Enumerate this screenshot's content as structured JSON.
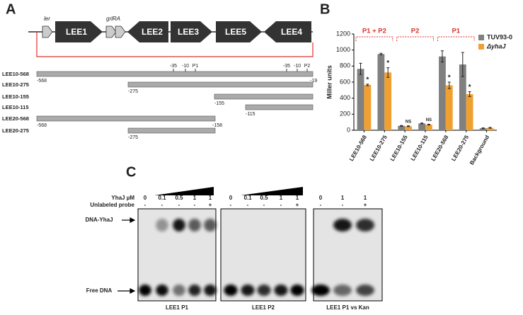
{
  "panel_labels": [
    "A",
    "B",
    "C"
  ],
  "panel_a": {
    "small_genes": [
      "ler",
      "grlRA"
    ],
    "operons": [
      "LEE1",
      "LEE2",
      "LEE3",
      "LEE5",
      "LEE4"
    ],
    "promoter_marks": [
      "-35",
      "-10",
      "P1",
      "-35",
      "-10",
      "P2"
    ],
    "constructs": [
      {
        "name": "LEE10-568",
        "labels": [
          "-568",
          "-19"
        ]
      },
      {
        "name": "LEE10-275",
        "labels": [
          "-275"
        ]
      },
      {
        "name": "LEE10-155",
        "labels": [
          "-155"
        ]
      },
      {
        "name": "LEE10-115",
        "labels": [
          "-115"
        ]
      },
      {
        "name": "LEE20-568",
        "labels": [
          "-568",
          "-158"
        ]
      },
      {
        "name": "LEE20-275",
        "labels": [
          "-275"
        ]
      }
    ]
  },
  "chart_data": {
    "type": "bar",
    "ylabel": "Miller units",
    "categories": [
      "LEE10-568",
      "LEE10-275",
      "LEE10-155",
      "LEE10-115",
      "LEE20-568",
      "LEE20-275",
      "Background"
    ],
    "series": [
      {
        "name": "TUV93-0",
        "color": "#808080",
        "values": [
          765,
          950,
          55,
          85,
          920,
          820,
          25
        ],
        "errors": [
          70,
          10,
          5,
          5,
          70,
          150,
          5
        ]
      },
      {
        "name": "ΔyhaJ",
        "color": "#f0a030",
        "values": [
          565,
          720,
          50,
          70,
          560,
          450,
          30
        ],
        "errors": [
          10,
          60,
          5,
          5,
          40,
          30,
          5
        ]
      }
    ],
    "significance": [
      "*",
      "*",
      "NS",
      "NS",
      "*",
      "*",
      null
    ],
    "groups": [
      "P1 + P2",
      "P2",
      "P1"
    ],
    "ylim": [
      0,
      1200
    ],
    "yticks": [
      0,
      200,
      400,
      600,
      800,
      1000,
      1200
    ],
    "legend": "upper right"
  },
  "panel_c": {
    "row_labels": [
      "YhaJ µM",
      "Unlabeled probe"
    ],
    "band_labels": [
      "DNA-YhaJ",
      "Free DNA"
    ],
    "gels": [
      {
        "caption": "LEE1 P1",
        "conc": [
          "0",
          "0.1",
          "0.5",
          "1",
          "1"
        ],
        "probe": [
          "-",
          "-",
          "-",
          "-",
          "+"
        ]
      },
      {
        "caption": "LEE1 P2",
        "conc": [
          "0",
          "0.1",
          "0.5",
          "1",
          "1"
        ],
        "probe": [
          "-",
          "-",
          "-",
          "-",
          "+"
        ]
      },
      {
        "caption": "LEE1 P1 vs Kan",
        "conc": [
          "0",
          "1",
          "1"
        ],
        "probe": [
          "-",
          "-",
          "+"
        ]
      }
    ]
  }
}
